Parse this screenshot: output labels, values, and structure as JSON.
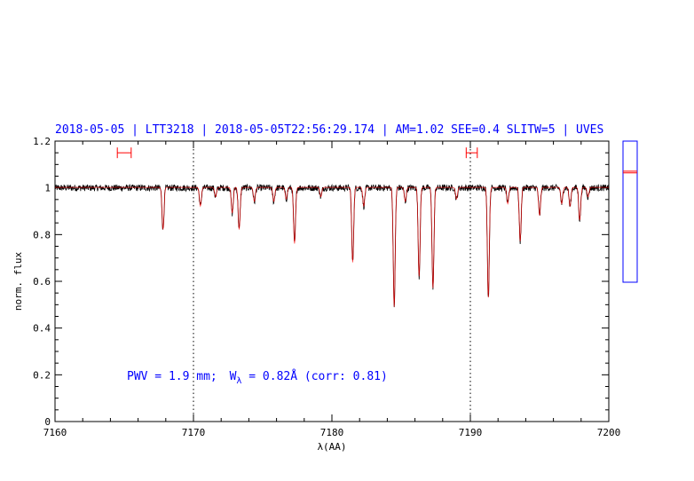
{
  "chart_data": {
    "type": "line",
    "title": "2018-05-05 | LTT3218 | 2018-05-05T22:56:29.174 | AM=1.02 SEE=0.4 SLITW=5 | UVES",
    "xlabel": "λ(AA)",
    "ylabel": "norm. flux",
    "xlim": [
      7160,
      7200
    ],
    "ylim": [
      0,
      1.2
    ],
    "x_ticks": [
      7160,
      7170,
      7180,
      7190,
      7200
    ],
    "x_tick_labels": [
      "7160",
      "7170",
      "7180",
      "7190",
      "7200"
    ],
    "y_ticks": [
      0,
      0.2,
      0.4,
      0.6,
      0.8,
      1,
      1.2
    ],
    "y_tick_labels": [
      "0",
      "0.2",
      "0.4",
      "0.6",
      "0.8",
      "1",
      "1.2"
    ],
    "vertical_dotted_lines": [
      7170,
      7190
    ],
    "continuum_level": 1.0,
    "grid": false,
    "continuum_ranges": [
      [
        7164.5,
        7165.5
      ],
      [
        7189.7,
        7190.5
      ]
    ],
    "range_marker_level": 1.15,
    "absorption_lines": [
      {
        "x": 7167.8,
        "depth": 0.18
      },
      {
        "x": 7170.5,
        "depth": 0.08
      },
      {
        "x": 7171.6,
        "depth": 0.04
      },
      {
        "x": 7172.8,
        "depth": 0.11
      },
      {
        "x": 7173.3,
        "depth": 0.18
      },
      {
        "x": 7174.4,
        "depth": 0.06
      },
      {
        "x": 7175.8,
        "depth": 0.06
      },
      {
        "x": 7176.7,
        "depth": 0.05
      },
      {
        "x": 7177.3,
        "depth": 0.24
      },
      {
        "x": 7179.2,
        "depth": 0.04
      },
      {
        "x": 7181.5,
        "depth": 0.32
      },
      {
        "x": 7182.3,
        "depth": 0.08
      },
      {
        "x": 7184.5,
        "depth": 0.51
      },
      {
        "x": 7185.3,
        "depth": 0.06
      },
      {
        "x": 7186.3,
        "depth": 0.38
      },
      {
        "x": 7187.3,
        "depth": 0.43
      },
      {
        "x": 7189.0,
        "depth": 0.05
      },
      {
        "x": 7191.3,
        "depth": 0.47
      },
      {
        "x": 7192.7,
        "depth": 0.07
      },
      {
        "x": 7193.6,
        "depth": 0.23
      },
      {
        "x": 7195.0,
        "depth": 0.12
      },
      {
        "x": 7196.6,
        "depth": 0.07
      },
      {
        "x": 7197.2,
        "depth": 0.08
      },
      {
        "x": 7197.9,
        "depth": 0.14
      },
      {
        "x": 7198.5,
        "depth": 0.04
      }
    ],
    "annotation": {
      "pwv": "PWV = 1.9 mm;",
      "w_label": "W",
      "w_sub": "λ",
      "w_value": " = 0.82Å (corr: 0.81)"
    },
    "side_panel": {
      "ylim": [
        0.6,
        1.2
      ],
      "levels": [
        1.065,
        1.072
      ]
    },
    "colors": {
      "title": "#0000ff",
      "annotation": "#0000ff",
      "spectrum": "#000000",
      "model": "#ff0000",
      "markers": "#ff0000",
      "panel_border": "#0000ff"
    }
  }
}
